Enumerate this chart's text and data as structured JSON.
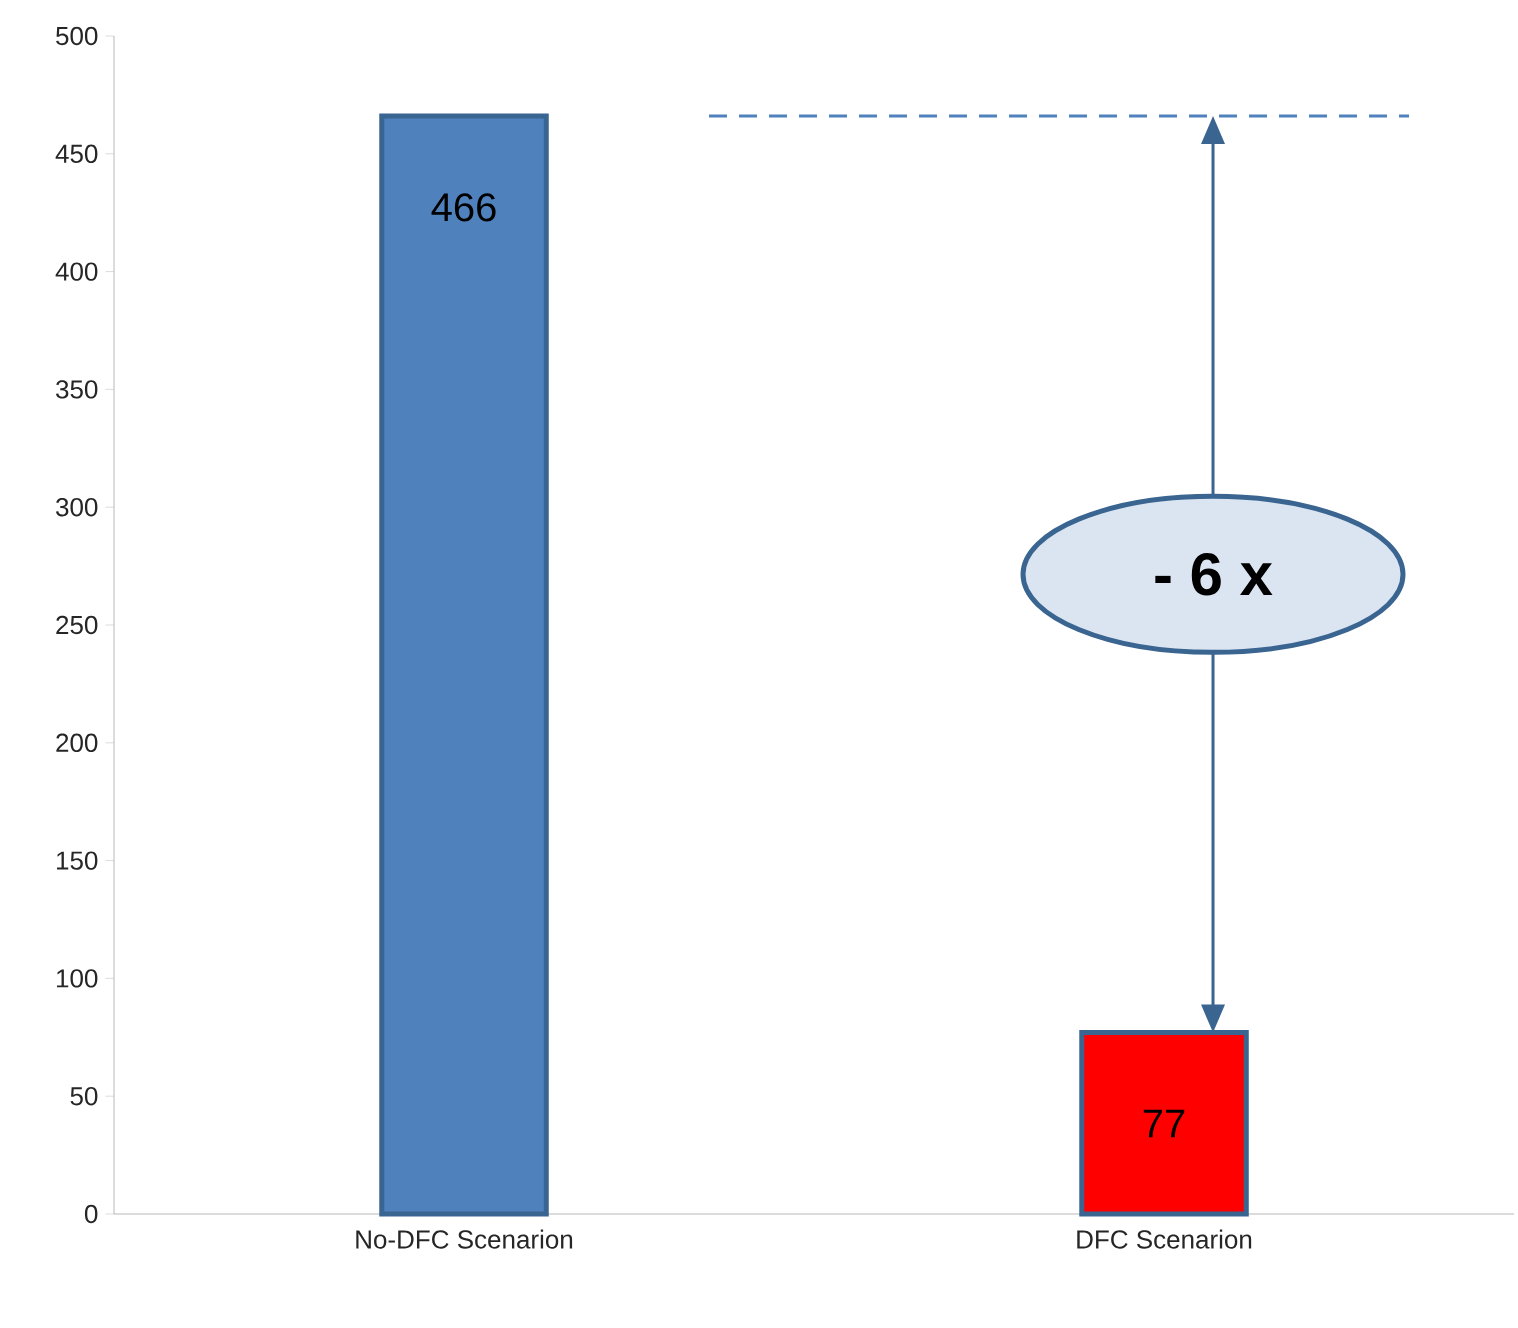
{
  "chart_data": {
    "type": "bar",
    "categories": [
      "No-DFC Scenarion",
      "DFC Scenarion"
    ],
    "values": [
      466,
      77
    ],
    "colors": [
      "#4f81bd",
      "#ff0000"
    ],
    "data_labels": true,
    "ylim": [
      0,
      500
    ],
    "yticks": [
      0,
      50,
      100,
      150,
      200,
      250,
      300,
      350,
      400,
      450,
      500
    ],
    "grid": false,
    "ref_lines": [
      {
        "axis": "y",
        "value": 466,
        "line_style": "dashed",
        "color": "#4f81bd"
      }
    ],
    "annotations": [
      "- 6 x"
    ]
  }
}
